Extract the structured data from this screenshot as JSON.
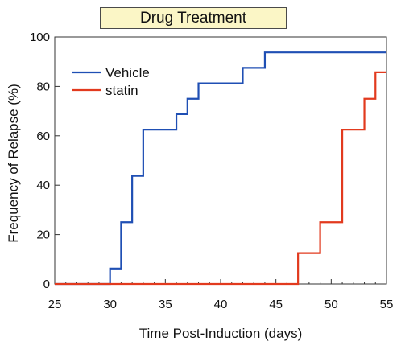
{
  "chart_data": {
    "type": "line",
    "step": true,
    "title": "Drug Treatment",
    "xlabel": "Time Post-Induction (days)",
    "ylabel": "Frequency of Relapse (%)",
    "xlim": [
      25,
      55
    ],
    "ylim": [
      0,
      100
    ],
    "xticks": [
      25,
      30,
      35,
      40,
      45,
      50,
      55
    ],
    "yticks": [
      0,
      20,
      40,
      60,
      80,
      100
    ],
    "legend_position": "top-left",
    "series": [
      {
        "name": "Vehicle",
        "color": "#1f4fb4",
        "x": [
          25,
          30,
          31,
          32,
          33,
          36,
          37,
          38,
          42,
          44,
          55
        ],
        "y": [
          0,
          6.25,
          25,
          43.75,
          62.5,
          68.75,
          75,
          81.25,
          87.5,
          93.75,
          93.75
        ]
      },
      {
        "name": "statin",
        "color": "#e23a1e",
        "x": [
          25,
          47,
          49,
          51,
          53,
          54,
          55
        ],
        "y": [
          0,
          12.5,
          25,
          62.5,
          75,
          85.7,
          85.7
        ]
      }
    ]
  }
}
